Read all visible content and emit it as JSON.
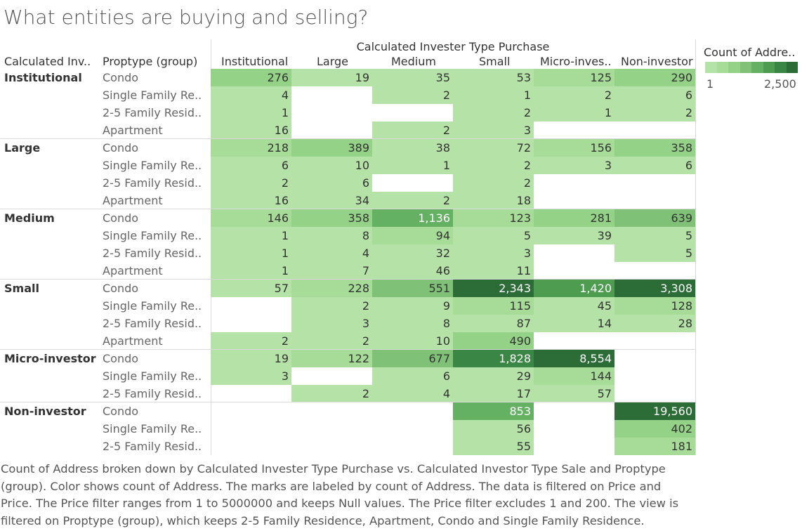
{
  "page_title": "What entities are buying and selling?",
  "chart_data": {
    "type": "heatmap",
    "column_header_title": "Calculated Invester Type Purchase",
    "row_header_titles": [
      "Calculated Inv..",
      "Proptype (group)"
    ],
    "columns": [
      "Institutional",
      "Large",
      "Medium",
      "Small",
      "Micro-inves..",
      "Non-investor"
    ],
    "rows": [
      {
        "group": "Institutional",
        "proptype": "Condo",
        "values": [
          276,
          19,
          35,
          53,
          125,
          290
        ]
      },
      {
        "group": "Institutional",
        "proptype": "Single Family Re..",
        "values": [
          4,
          null,
          2,
          1,
          2,
          6
        ]
      },
      {
        "group": "Institutional",
        "proptype": "2-5 Family Resid..",
        "values": [
          1,
          null,
          null,
          2,
          1,
          2
        ]
      },
      {
        "group": "Institutional",
        "proptype": "Apartment",
        "values": [
          16,
          null,
          2,
          3,
          null,
          null
        ]
      },
      {
        "group": "Large",
        "proptype": "Condo",
        "values": [
          218,
          389,
          38,
          72,
          156,
          358
        ]
      },
      {
        "group": "Large",
        "proptype": "Single Family Re..",
        "values": [
          6,
          10,
          1,
          2,
          3,
          6
        ]
      },
      {
        "group": "Large",
        "proptype": "2-5 Family Resid..",
        "values": [
          2,
          6,
          null,
          2,
          null,
          null
        ]
      },
      {
        "group": "Large",
        "proptype": "Apartment",
        "values": [
          16,
          34,
          2,
          18,
          null,
          null
        ]
      },
      {
        "group": "Medium",
        "proptype": "Condo",
        "values": [
          146,
          358,
          1136,
          123,
          281,
          639
        ]
      },
      {
        "group": "Medium",
        "proptype": "Single Family Re..",
        "values": [
          1,
          8,
          94,
          5,
          39,
          5
        ]
      },
      {
        "group": "Medium",
        "proptype": "2-5 Family Resid..",
        "values": [
          1,
          4,
          32,
          3,
          null,
          5
        ]
      },
      {
        "group": "Medium",
        "proptype": "Apartment",
        "values": [
          1,
          7,
          46,
          11,
          null,
          null
        ]
      },
      {
        "group": "Small",
        "proptype": "Condo",
        "values": [
          57,
          228,
          551,
          2343,
          1420,
          3308
        ]
      },
      {
        "group": "Small",
        "proptype": "Single Family Re..",
        "values": [
          null,
          2,
          9,
          115,
          45,
          128
        ]
      },
      {
        "group": "Small",
        "proptype": "2-5 Family Resid..",
        "values": [
          null,
          3,
          8,
          87,
          14,
          28
        ]
      },
      {
        "group": "Small",
        "proptype": "Apartment",
        "values": [
          2,
          2,
          10,
          490,
          null,
          null
        ]
      },
      {
        "group": "Micro-investor",
        "proptype": "Condo",
        "values": [
          19,
          122,
          677,
          1828,
          8554,
          null
        ]
      },
      {
        "group": "Micro-investor",
        "proptype": "Single Family Re..",
        "values": [
          3,
          null,
          6,
          29,
          144,
          null
        ]
      },
      {
        "group": "Micro-investor",
        "proptype": "2-5 Family Resid..",
        "values": [
          null,
          2,
          4,
          17,
          57,
          null
        ]
      },
      {
        "group": "Non-investor",
        "proptype": "Condo",
        "values": [
          null,
          null,
          null,
          853,
          null,
          19560
        ]
      },
      {
        "group": "Non-investor",
        "proptype": "Single Family Re..",
        "values": [
          null,
          null,
          null,
          56,
          null,
          402
        ]
      },
      {
        "group": "Non-investor",
        "proptype": "2-5 Family Resid..",
        "values": [
          null,
          null,
          null,
          55,
          null,
          181
        ]
      }
    ],
    "color_min": 1,
    "color_max": 2500,
    "legend": {
      "title": "Count of Addre..",
      "min_label": "1",
      "max_label": "2,500"
    },
    "colors": [
      "#b5e2a7",
      "#a6dc98",
      "#93d287",
      "#7fc277",
      "#64b164",
      "#4e9c50",
      "#3a8644",
      "#2c6c36"
    ]
  },
  "caption": "Count of Address broken down by Calculated Invester Type Purchase vs. Calculated Investor Type Sale and Proptype (group).  Color shows count of Address.  The marks are labeled by count of Address. The data is filtered on Price and Price. The Price filter ranges from 1 to 5000000 and keeps Null values. The Price filter excludes 1 and 200. The view is filtered on Proptype (group), which keeps 2-5 Family Residence, Apartment, Condo and Single Family Residence."
}
